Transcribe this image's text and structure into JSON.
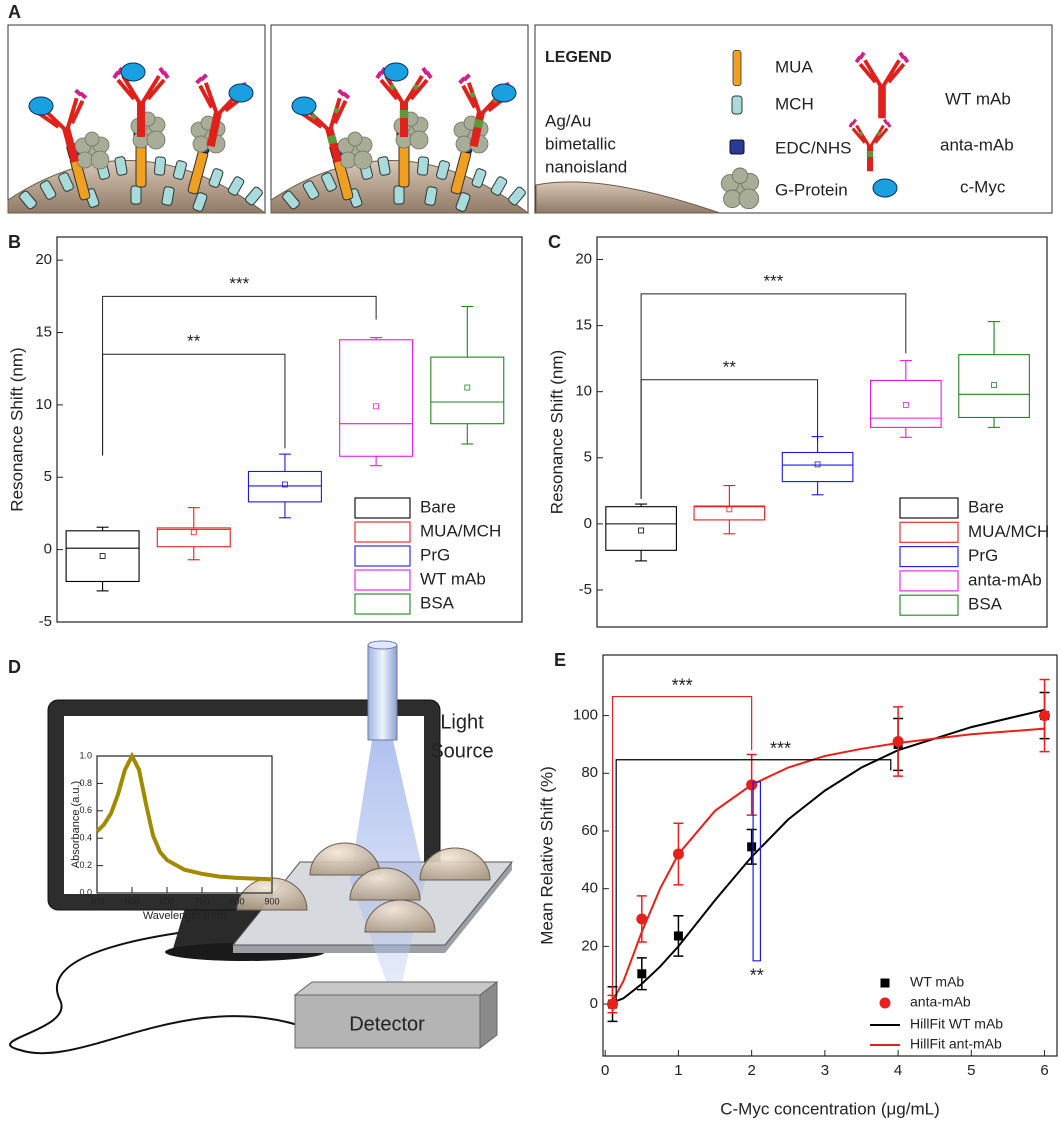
{
  "figure_a": {
    "label": "A",
    "legend_title": "LEGEND",
    "surface_label": [
      "Ag/Au",
      "bimetallic",
      "nanoisland"
    ],
    "items": [
      "MUA",
      "MCH",
      "EDC/NHS",
      "G-Protein",
      "WT mAb",
      "anta-mAb",
      "c-Myc"
    ]
  },
  "figure_d": {
    "label": "D",
    "light_source": [
      "Light",
      "Source"
    ],
    "detector": "Detector"
  },
  "chart_data": [
    {
      "panel": "B",
      "type": "box",
      "ylabel": "Resonance Shift (nm)",
      "categories": [
        "Bare",
        "MUA/MCH",
        "PrG",
        "WT mAb",
        "BSA"
      ],
      "colors": [
        "#000000",
        "#e8201a",
        "#1a1ae8",
        "#e81ae8",
        "#1a8a1a"
      ],
      "whisker_low": [
        -2.85,
        -0.7,
        2.2,
        5.8,
        7.3
      ],
      "q1": [
        -2.2,
        0.2,
        3.3,
        6.45,
        8.7
      ],
      "median": [
        0.1,
        1.4,
        4.4,
        8.7,
        10.2
      ],
      "q3": [
        1.3,
        1.5,
        5.4,
        14.5,
        13.3
      ],
      "whisker_high": [
        1.55,
        2.9,
        6.6,
        14.65,
        16.8
      ],
      "mean": [
        -0.45,
        1.2,
        4.5,
        9.9,
        11.2
      ],
      "ylim": [
        -5,
        21.6
      ],
      "yticks": [
        -5,
        0,
        5,
        10,
        15,
        20
      ],
      "legend": "lower right",
      "annotations": [
        {
          "text": "***",
          "between": [
            "Bare",
            "WT mAb"
          ],
          "y": 17.5,
          "legs": [
            6.5,
            15.9
          ]
        },
        {
          "text": "**",
          "between": [
            "Bare",
            "PrG"
          ],
          "y": 13.5,
          "legs": [
            6.5,
            7.0
          ]
        }
      ]
    },
    {
      "panel": "C",
      "type": "box",
      "ylabel": "Resonance Shift (nm)",
      "categories": [
        "Bare",
        "MUA/MCH",
        "PrG",
        "anta-mAb",
        "BSA"
      ],
      "colors": [
        "#000000",
        "#e8201a",
        "#1a1ae8",
        "#e81ae8",
        "#1a8a1a"
      ],
      "whisker_low": [
        -2.8,
        -0.75,
        2.2,
        6.55,
        7.3
      ],
      "q1": [
        -2.0,
        0.3,
        3.2,
        7.3,
        8.05
      ],
      "median": [
        0,
        1.3,
        4.45,
        8.0,
        9.8
      ],
      "q3": [
        1.3,
        1.35,
        5.4,
        10.85,
        12.8
      ],
      "whisker_high": [
        1.5,
        2.9,
        6.6,
        12.35,
        15.3
      ],
      "mean": [
        -0.5,
        1.1,
        4.5,
        9.0,
        10.5
      ],
      "ylim": [
        -7.8,
        21.7
      ],
      "yticks": [
        -5,
        0,
        5,
        10,
        15,
        20
      ],
      "legend": "lower right",
      "annotations": [
        {
          "text": "***",
          "between": [
            "Bare",
            "anta-mAb"
          ],
          "y": 17.4,
          "legs": [
            1.9,
            12.9
          ]
        },
        {
          "text": "**",
          "between": [
            "Bare",
            "PrG"
          ],
          "y": 10.9,
          "legs": [
            1.9,
            6.2
          ]
        }
      ]
    },
    {
      "type": "line",
      "xlabel": "Wavelength (nm)",
      "ylabel": "Absorbance (a.u.)",
      "x": [
        400,
        420,
        440,
        460,
        480,
        500,
        520,
        540,
        560,
        580,
        600,
        650,
        700,
        750,
        800,
        850,
        900
      ],
      "series": [
        {
          "color": "#a08b00",
          "values": [
            0.45,
            0.5,
            0.58,
            0.72,
            0.9,
            1.0,
            0.9,
            0.65,
            0.42,
            0.3,
            0.24,
            0.17,
            0.14,
            0.12,
            0.11,
            0.105,
            0.1
          ]
        }
      ],
      "xlim": [
        400,
        900
      ],
      "ylim": [
        0,
        1
      ],
      "xticks": [
        400,
        500,
        600,
        700,
        800,
        900
      ],
      "yticks": [
        {
          "value": 0,
          "label": "0.0"
        },
        0.2,
        0.4,
        0.6,
        0.8,
        {
          "value": 1,
          "label": "1.0"
        }
      ]
    },
    {
      "panel": "E",
      "type": "scatter",
      "xlabel": "C-Myc concentration (μg/mL)",
      "ylabel": "Mean Relative Shift (%)",
      "xlim": [
        -0.03,
        6.17
      ],
      "ylim": [
        -18,
        121
      ],
      "xticks": [
        0,
        1,
        2,
        3,
        4,
        5,
        6
      ],
      "yticks": [
        0,
        20,
        40,
        60,
        80,
        100
      ],
      "legend": "lower right",
      "series": [
        {
          "name": "WT mAb",
          "type": "scatter",
          "marker": "square",
          "color": "#000000",
          "x": [
            0.1,
            0.5,
            1,
            2,
            4,
            6
          ],
          "values": [
            0,
            10.5,
            23.6,
            54.5,
            90,
            100
          ],
          "errors": [
            6,
            5.5,
            7,
            6,
            9,
            8
          ]
        },
        {
          "name": "anta-mAb",
          "type": "scatter",
          "marker": "circle",
          "color": "#e8201a",
          "x": [
            0.1,
            0.5,
            1,
            2,
            4,
            6
          ],
          "values": [
            0,
            29.5,
            52,
            76,
            91,
            100
          ],
          "errors": [
            3,
            8,
            10.7,
            10.5,
            12,
            12.5
          ]
        },
        {
          "name": "HillFit WT mAb",
          "type": "line",
          "color": "#000000",
          "x": [
            0.1,
            0.25,
            0.5,
            0.75,
            1,
            1.5,
            2,
            2.5,
            3,
            3.5,
            4,
            5,
            6
          ],
          "values": [
            0.5,
            2,
            7,
            13,
            20,
            36,
            51,
            64,
            74,
            82,
            88,
            96,
            102
          ]
        },
        {
          "name": "HillFit ant-mAb",
          "type": "line",
          "color": "#e8201a",
          "x": [
            0.1,
            0.25,
            0.5,
            0.75,
            1,
            1.5,
            2,
            2.5,
            3,
            3.5,
            4,
            5,
            6
          ],
          "values": [
            1,
            8,
            25,
            40,
            52,
            67,
            76,
            82,
            86,
            88.5,
            90.5,
            93.5,
            95.5
          ]
        }
      ],
      "annotations": [
        {
          "text": "***",
          "color": "#e8201a",
          "x": [
            0.1,
            2
          ],
          "y": 106.6,
          "legs": [
            2.8,
            88
          ]
        },
        {
          "text": "***",
          "color": "#000000",
          "x": [
            0.15,
            3.9
          ],
          "y": 84.7,
          "legs": [
            1.4,
            81
          ]
        },
        {
          "text": "**",
          "color": "#1a1ae8",
          "x": [
            2.02,
            2.12
          ],
          "y": [
            15,
            77
          ]
        }
      ]
    }
  ]
}
